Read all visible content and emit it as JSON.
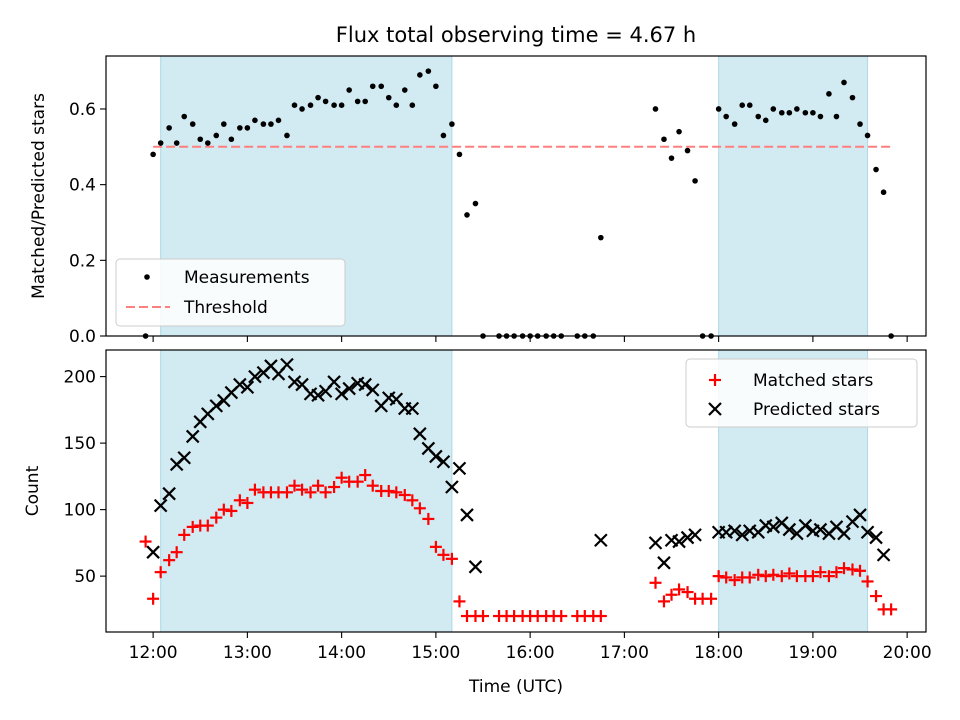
{
  "chart_data": [
    {
      "type": "scatter",
      "title": "Flux total observing time = 4.67 h",
      "ylabel": "Matched/Predicted stars",
      "xlim": [
        11.5,
        20.2
      ],
      "ylim": [
        0,
        0.74
      ],
      "yticks": [
        0.0,
        0.2,
        0.4,
        0.6
      ],
      "ytick_labels": [
        "0.0",
        "0.2",
        "0.4",
        "0.6"
      ],
      "shaded_spans": [
        [
          12.08,
          15.17
        ],
        [
          18.0,
          19.58
        ]
      ],
      "shade_color": "#add8e6",
      "legend_position": "lower-left",
      "series": [
        {
          "name": "Measurements",
          "marker": "dot",
          "color": "#000000",
          "x": [
            11.92,
            12.0,
            12.08,
            12.17,
            12.25,
            12.33,
            12.42,
            12.5,
            12.58,
            12.67,
            12.75,
            12.83,
            12.92,
            13.0,
            13.08,
            13.17,
            13.25,
            13.33,
            13.42,
            13.5,
            13.58,
            13.67,
            13.75,
            13.83,
            13.92,
            14.0,
            14.08,
            14.17,
            14.25,
            14.33,
            14.42,
            14.5,
            14.58,
            14.67,
            14.75,
            14.83,
            14.92,
            15.0,
            15.08,
            15.17,
            15.25,
            15.33,
            15.42,
            15.5,
            15.67,
            15.75,
            15.83,
            15.92,
            16.0,
            16.08,
            16.17,
            16.25,
            16.33,
            16.5,
            16.58,
            16.67,
            16.75,
            17.33,
            17.42,
            17.5,
            17.58,
            17.67,
            17.75,
            17.83,
            17.92,
            18.0,
            18.08,
            18.17,
            18.25,
            18.33,
            18.42,
            18.5,
            18.58,
            18.67,
            18.75,
            18.83,
            18.92,
            19.0,
            19.08,
            19.17,
            19.25,
            19.33,
            19.42,
            19.5,
            19.58,
            19.67,
            19.75,
            19.83
          ],
          "y": [
            0.0,
            0.48,
            0.51,
            0.55,
            0.51,
            0.58,
            0.56,
            0.52,
            0.51,
            0.53,
            0.56,
            0.52,
            0.55,
            0.55,
            0.57,
            0.56,
            0.56,
            0.57,
            0.53,
            0.61,
            0.6,
            0.61,
            0.63,
            0.62,
            0.61,
            0.61,
            0.65,
            0.62,
            0.62,
            0.66,
            0.66,
            0.63,
            0.61,
            0.65,
            0.61,
            0.69,
            0.7,
            0.66,
            0.53,
            0.56,
            0.48,
            0.32,
            0.35,
            0.0,
            0.0,
            0.0,
            0.0,
            0.0,
            0.0,
            0.0,
            0.0,
            0.0,
            0.0,
            0.0,
            0.0,
            0.0,
            0.26,
            0.6,
            0.52,
            0.47,
            0.54,
            0.49,
            0.41,
            0.0,
            0.0,
            0.6,
            0.58,
            0.56,
            0.61,
            0.61,
            0.58,
            0.57,
            0.6,
            0.59,
            0.59,
            0.6,
            0.59,
            0.59,
            0.58,
            0.64,
            0.58,
            0.67,
            0.63,
            0.56,
            0.53,
            0.44,
            0.38,
            0.0
          ]
        },
        {
          "name": "Threshold",
          "marker": "dashed-line",
          "color": "#ff7f7f",
          "x": [
            12.0,
            19.83
          ],
          "y": [
            0.5,
            0.5
          ]
        }
      ]
    },
    {
      "type": "scatter",
      "xlabel": "Time (UTC)",
      "ylabel": "Count",
      "xlim": [
        11.5,
        20.2
      ],
      "ylim": [
        8,
        220
      ],
      "xticks": [
        12,
        13,
        14,
        15,
        16,
        17,
        18,
        19,
        20
      ],
      "xtick_labels": [
        "12:00",
        "13:00",
        "14:00",
        "15:00",
        "16:00",
        "17:00",
        "18:00",
        "19:00",
        "20:00"
      ],
      "yticks": [
        50,
        100,
        150,
        200
      ],
      "ytick_labels": [
        "50",
        "100",
        "150",
        "200"
      ],
      "shaded_spans": [
        [
          12.08,
          15.17
        ],
        [
          18.0,
          19.58
        ]
      ],
      "shade_color": "#add8e6",
      "legend_position": "top-right",
      "series": [
        {
          "name": "Matched stars",
          "marker": "plus",
          "color": "#ff0000",
          "x": [
            11.92,
            12.0,
            12.08,
            12.17,
            12.25,
            12.33,
            12.42,
            12.5,
            12.58,
            12.67,
            12.75,
            12.83,
            12.92,
            13.0,
            13.08,
            13.17,
            13.25,
            13.33,
            13.42,
            13.5,
            13.58,
            13.67,
            13.75,
            13.83,
            13.92,
            14.0,
            14.08,
            14.17,
            14.25,
            14.33,
            14.42,
            14.5,
            14.58,
            14.67,
            14.75,
            14.83,
            14.92,
            15.0,
            15.08,
            15.17,
            15.25,
            15.33,
            15.42,
            15.5,
            15.67,
            15.75,
            15.83,
            15.92,
            16.0,
            16.08,
            16.17,
            16.25,
            16.33,
            16.5,
            16.58,
            16.67,
            16.75,
            17.33,
            17.42,
            17.5,
            17.58,
            17.67,
            17.75,
            17.83,
            17.92,
            18.0,
            18.08,
            18.17,
            18.25,
            18.33,
            18.42,
            18.5,
            18.58,
            18.67,
            18.75,
            18.83,
            18.92,
            19.0,
            19.08,
            19.17,
            19.25,
            19.33,
            19.42,
            19.5,
            19.58,
            19.67,
            19.75,
            19.83
          ],
          "y": [
            76,
            33,
            53,
            62,
            68,
            81,
            87,
            88,
            88,
            94,
            100,
            99,
            107,
            105,
            115,
            113,
            113,
            113,
            113,
            118,
            115,
            113,
            118,
            113,
            117,
            124,
            121,
            121,
            126,
            118,
            114,
            114,
            113,
            111,
            107,
            101,
            93,
            72,
            66,
            63,
            31,
            20,
            20,
            20,
            20,
            20,
            20,
            20,
            20,
            20,
            20,
            20,
            20,
            20,
            20,
            20,
            20,
            45,
            31,
            36,
            40,
            38,
            33,
            33,
            33,
            50,
            49,
            47,
            49,
            49,
            51,
            50,
            51,
            50,
            52,
            50,
            50,
            50,
            53,
            50,
            53,
            56,
            55,
            54,
            46,
            35,
            25,
            25
          ]
        },
        {
          "name": "Predicted stars",
          "marker": "x",
          "color": "#000000",
          "x": [
            12.0,
            12.08,
            12.17,
            12.25,
            12.33,
            12.42,
            12.5,
            12.58,
            12.67,
            12.75,
            12.83,
            12.92,
            13.0,
            13.08,
            13.17,
            13.25,
            13.33,
            13.42,
            13.5,
            13.58,
            13.67,
            13.75,
            13.83,
            13.92,
            14.0,
            14.08,
            14.17,
            14.25,
            14.33,
            14.42,
            14.5,
            14.58,
            14.67,
            14.75,
            14.83,
            14.92,
            15.0,
            15.08,
            15.17,
            15.25,
            15.33,
            15.42,
            16.75,
            17.33,
            17.42,
            17.5,
            17.58,
            17.67,
            17.75,
            18.0,
            18.08,
            18.17,
            18.25,
            18.33,
            18.42,
            18.5,
            18.58,
            18.67,
            18.75,
            18.83,
            18.92,
            19.0,
            19.08,
            19.17,
            19.25,
            19.33,
            19.42,
            19.5,
            19.58,
            19.67,
            19.75
          ],
          "y": [
            68,
            103,
            112,
            134,
            139,
            155,
            166,
            172,
            178,
            182,
            188,
            194,
            192,
            200,
            203,
            208,
            202,
            209,
            196,
            194,
            187,
            186,
            189,
            196,
            187,
            191,
            195,
            194,
            190,
            178,
            184,
            183,
            176,
            176,
            157,
            146,
            140,
            136,
            117,
            131,
            96,
            57,
            77,
            75,
            60,
            77,
            76,
            79,
            81,
            83,
            83,
            84,
            81,
            84,
            83,
            88,
            87,
            90,
            85,
            82,
            88,
            84,
            85,
            82,
            87,
            82,
            91,
            96,
            83,
            79,
            66
          ]
        }
      ]
    }
  ]
}
